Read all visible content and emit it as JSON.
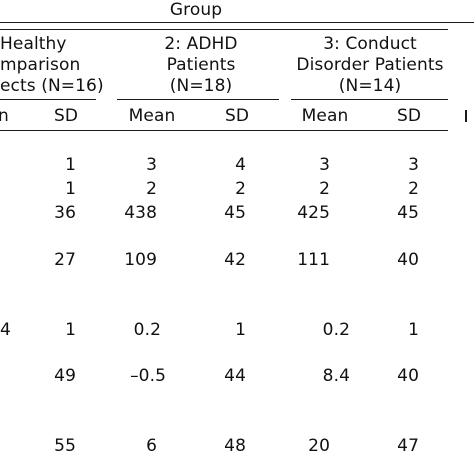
{
  "table": {
    "group_label": "Group",
    "columns": [
      {
        "header_lines": [
          "Healthy",
          "mparison",
          "ects (N=16)"
        ],
        "stats": [
          "n",
          "SD"
        ]
      },
      {
        "header_lines": [
          "2: ADHD",
          "Patients",
          "(N=18)"
        ],
        "stats": [
          "Mean",
          "SD"
        ]
      },
      {
        "header_lines": [
          "3: Conduct",
          "Disorder Patients",
          "(N=14)"
        ],
        "stats": [
          "Mean",
          "SD"
        ]
      }
    ],
    "rows": [
      {
        "left": "",
        "cells": [
          "1",
          "3",
          "4",
          "3",
          "3"
        ]
      },
      {
        "left": "",
        "cells": [
          "1",
          "2",
          "2",
          "2",
          "2"
        ]
      },
      {
        "left": "",
        "cells": [
          "36",
          "438",
          "45",
          "425",
          "45"
        ]
      },
      {
        "left": "",
        "cells": [
          "27",
          "109",
          "42",
          "111",
          "40"
        ]
      },
      {
        "left": "4",
        "cells": [
          "1",
          "0.2",
          "1",
          "0.2",
          "1"
        ]
      },
      {
        "left": "",
        "cells": [
          "49",
          "–0.5",
          "44",
          "8.4",
          "40"
        ]
      },
      {
        "left": "",
        "cells": [
          "55",
          "6",
          "48",
          "20",
          "47"
        ]
      }
    ]
  }
}
